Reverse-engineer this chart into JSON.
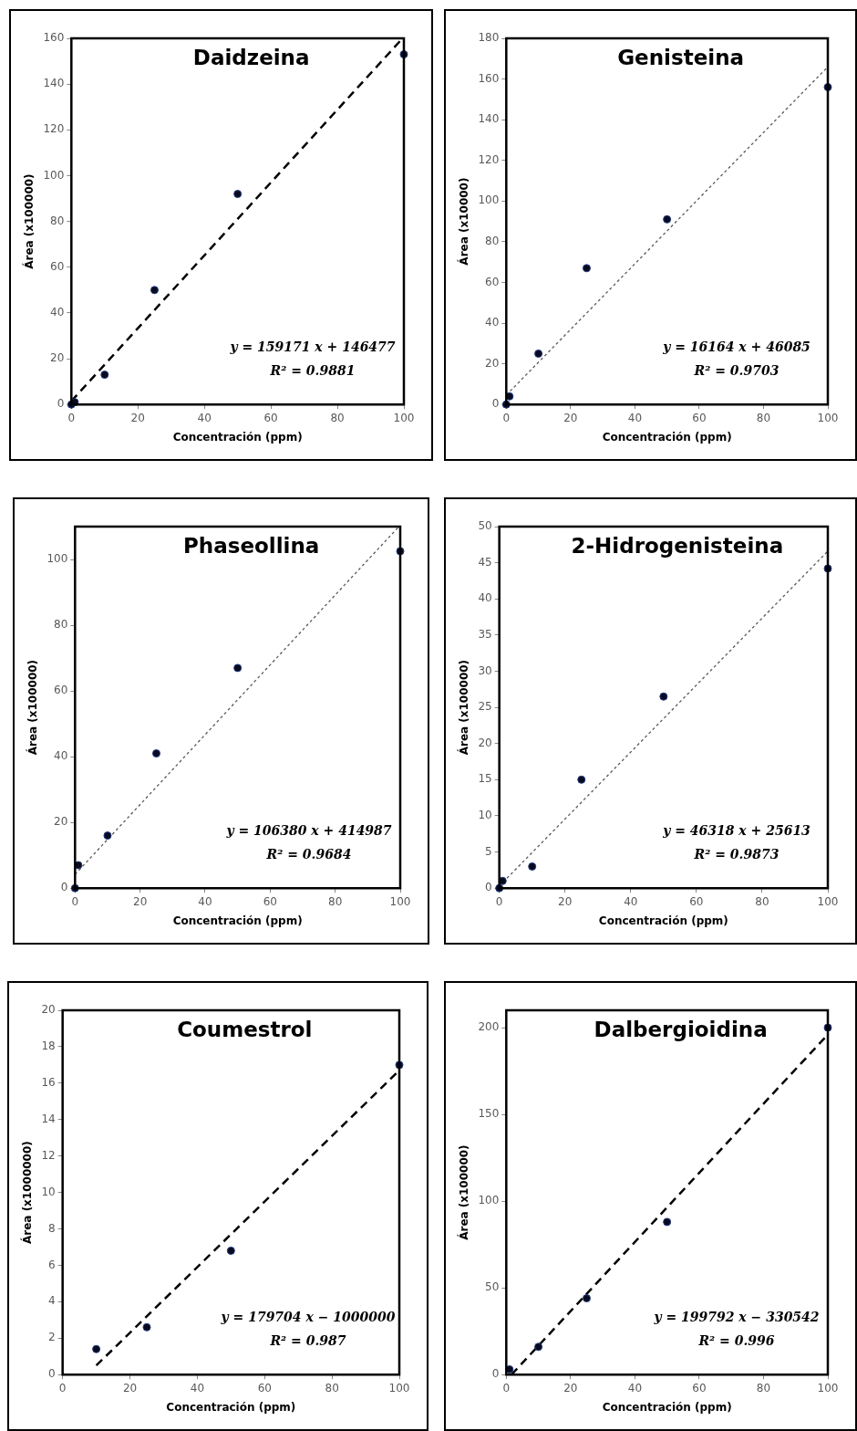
{
  "chart_data": [
    {
      "type": "scatter",
      "title": "Daidzeina",
      "xlabel": "Concentración (ppm)",
      "ylabel": "Área (x100000)",
      "annotations": [
        "y = 159171 x + 146477",
        "R² = 0.9881"
      ],
      "xlim": [
        0,
        100
      ],
      "xticks": [
        0,
        20,
        40,
        60,
        80,
        100
      ],
      "ylim": [
        0,
        160
      ],
      "yticks": [
        0,
        20,
        40,
        60,
        80,
        100,
        120,
        140,
        160
      ],
      "series": [
        {
          "type": "scatter",
          "marker": "circle",
          "color": "#0a0a1e",
          "x": [
            0,
            1,
            10,
            25,
            50,
            100
          ],
          "values": [
            0,
            1,
            13,
            50,
            92,
            153
          ]
        },
        {
          "type": "line",
          "marker": "none",
          "line_style": "dashed",
          "color": "#000000",
          "x": [
            0,
            99.6
          ],
          "values": [
            1.5,
            160
          ]
        }
      ]
    },
    {
      "type": "scatter",
      "title": "Genisteina",
      "xlabel": "Concentración (ppm)",
      "ylabel": "Área (x10000)",
      "annotations": [
        "y = 16164 x + 46085",
        "R² = 0.9703"
      ],
      "xlim": [
        0,
        100
      ],
      "xticks": [
        0,
        20,
        40,
        60,
        80,
        100
      ],
      "ylim": [
        0,
        180
      ],
      "yticks": [
        0,
        20,
        40,
        60,
        80,
        100,
        120,
        140,
        160,
        180
      ],
      "series": [
        {
          "type": "scatter",
          "marker": "circle",
          "color": "#0a0a1e",
          "x": [
            0,
            1,
            10,
            25,
            50,
            100
          ],
          "values": [
            0,
            4,
            25,
            67,
            91,
            156
          ]
        },
        {
          "type": "line",
          "marker": "none",
          "line_style": "dotted",
          "color": "#595959",
          "x": [
            0,
            100
          ],
          "values": [
            4.6,
            166
          ]
        }
      ]
    },
    {
      "type": "scatter",
      "title": "Phaseollina",
      "xlabel": "Concentración (ppm)",
      "ylabel": "Área (x100000)",
      "annotations": [
        "y = 106380 x + 414987",
        "R² = 0.9684"
      ],
      "xlim": [
        0,
        100
      ],
      "xticks": [
        0,
        20,
        40,
        60,
        80,
        100
      ],
      "ylim": [
        0,
        110
      ],
      "yticks": [
        0,
        20,
        40,
        60,
        80,
        100
      ],
      "series": [
        {
          "type": "scatter",
          "marker": "circle",
          "color": "#0a0a1e",
          "x": [
            0,
            1,
            10,
            25,
            50,
            100
          ],
          "values": [
            0,
            7,
            16,
            41,
            67,
            102.5
          ]
        },
        {
          "type": "line",
          "marker": "none",
          "line_style": "dotted",
          "color": "#595959",
          "x": [
            0,
            99.6
          ],
          "values": [
            4.2,
            110
          ]
        }
      ]
    },
    {
      "type": "scatter",
      "title": "2-Hidrogenisteina",
      "xlabel": "Concentración (ppm)",
      "ylabel": "Área (x100000)",
      "annotations": [
        "y = 46318 x + 25613",
        "R² = 0.9873"
      ],
      "xlim": [
        0,
        100
      ],
      "xticks": [
        0,
        20,
        40,
        60,
        80,
        100
      ],
      "ylim": [
        0,
        50
      ],
      "yticks": [
        0,
        5,
        10,
        15,
        20,
        25,
        30,
        35,
        40,
        45,
        50
      ],
      "series": [
        {
          "type": "scatter",
          "marker": "circle",
          "color": "#0a0a1e",
          "x": [
            0,
            1,
            10,
            25,
            50,
            100
          ],
          "values": [
            0,
            1,
            3,
            15,
            26.5,
            44.2
          ]
        },
        {
          "type": "line",
          "marker": "none",
          "line_style": "dotted",
          "color": "#595959",
          "x": [
            0,
            100
          ],
          "values": [
            0.3,
            46.6
          ]
        }
      ]
    },
    {
      "type": "scatter",
      "title": "Coumestrol",
      "xlabel": "Concentración (ppm)",
      "ylabel": "Área (x1000000)",
      "annotations": [
        "y = 179704 x − 1000000",
        "R² = 0.987"
      ],
      "xlim": [
        0,
        100
      ],
      "xticks": [
        0,
        20,
        40,
        60,
        80,
        100
      ],
      "ylim": [
        0,
        20
      ],
      "yticks": [
        0,
        2,
        4,
        6,
        8,
        10,
        12,
        14,
        16,
        18,
        20
      ],
      "series": [
        {
          "type": "scatter",
          "marker": "circle",
          "color": "#0a0a1e",
          "x": [
            10,
            25,
            50,
            100
          ],
          "values": [
            1.4,
            2.6,
            6.8,
            17
          ]
        },
        {
          "type": "line",
          "marker": "none",
          "line_style": "dashed",
          "color": "#000000",
          "x": [
            10,
            100
          ],
          "values": [
            0.5,
            16.7
          ]
        }
      ]
    },
    {
      "type": "scatter",
      "title": "Dalbergioidina",
      "xlabel": "Concentración (ppm)",
      "ylabel": "Área (x100000)",
      "annotations": [
        "y = 199792 x − 330542",
        "R² = 0.996"
      ],
      "xlim": [
        0,
        100
      ],
      "xticks": [
        0,
        20,
        40,
        60,
        80,
        100
      ],
      "ylim": [
        0,
        210
      ],
      "yticks": [
        0,
        50,
        100,
        150,
        200
      ],
      "series": [
        {
          "type": "scatter",
          "marker": "circle",
          "color": "#0a0a1e",
          "x": [
            1,
            10,
            25,
            50,
            100
          ],
          "values": [
            3,
            16,
            44,
            88,
            200
          ]
        },
        {
          "type": "line",
          "marker": "none",
          "line_style": "dashed",
          "color": "#000000",
          "x": [
            1.65,
            100
          ],
          "values": [
            0,
            196
          ]
        }
      ]
    }
  ]
}
